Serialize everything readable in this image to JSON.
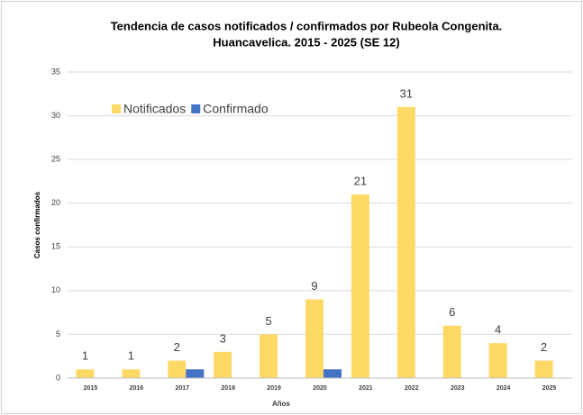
{
  "chart_data": {
    "type": "bar",
    "title": [
      "Tendencia de casos notificados / confirmados por Rubeola Congenita.",
      "Huancavelica. 2015 - 2025 (SE 12)"
    ],
    "x_label": "Años",
    "y_label": "Casos confirmados",
    "categories": [
      "2015",
      "2016",
      "2017",
      "2018",
      "2019",
      "2020",
      "2021",
      "2022",
      "2023",
      "2024",
      "2025"
    ],
    "series": [
      {
        "name": "Notificados",
        "color": "#FFD966",
        "values": [
          1,
          1,
          2,
          3,
          5,
          9,
          21,
          31,
          6,
          4,
          2
        ],
        "show_labels": true
      },
      {
        "name": "Confirmado",
        "color": "#4472C4",
        "values": [
          0,
          0,
          1,
          0,
          0,
          1,
          0,
          0,
          0,
          0,
          0
        ],
        "show_labels": false
      }
    ],
    "ylim": [
      0,
      35
    ],
    "yticks": [
      0,
      5,
      10,
      15,
      20,
      25,
      30,
      35
    ],
    "grid": true,
    "legend": "top-left"
  }
}
